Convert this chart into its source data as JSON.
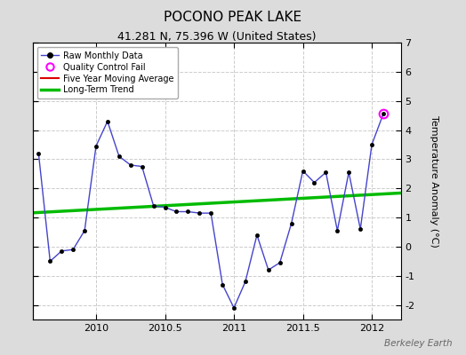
{
  "title": "POCONO PEAK LAKE",
  "subtitle": "41.281 N, 75.396 W (United States)",
  "watermark": "Berkeley Earth",
  "ylabel": "Temperature Anomaly (°C)",
  "ylim": [
    -2.5,
    7
  ],
  "yticks": [
    -2,
    -1,
    0,
    1,
    2,
    3,
    4,
    5,
    6,
    7
  ],
  "xlim": [
    2009.54,
    2012.21
  ],
  "xticks": [
    2010,
    2010.5,
    2011,
    2011.5,
    2012
  ],
  "background_color": "#dcdcdc",
  "plot_bg_color": "#ffffff",
  "raw_x": [
    2009.583,
    2009.667,
    2009.75,
    2009.833,
    2009.917,
    2010.0,
    2010.083,
    2010.167,
    2010.25,
    2010.333,
    2010.417,
    2010.5,
    2010.583,
    2010.667,
    2010.75,
    2010.833,
    2010.917,
    2011.0,
    2011.083,
    2011.167,
    2011.25,
    2011.333,
    2011.417,
    2011.5,
    2011.583,
    2011.667,
    2011.75,
    2011.833,
    2011.917,
    2012.0,
    2012.083
  ],
  "raw_y": [
    3.2,
    -0.5,
    -0.15,
    -0.1,
    0.55,
    3.45,
    4.3,
    3.1,
    2.8,
    2.75,
    1.4,
    1.35,
    1.2,
    1.2,
    1.15,
    1.15,
    -1.3,
    -2.1,
    -1.2,
    0.4,
    -0.8,
    -0.55,
    0.8,
    2.6,
    2.2,
    2.55,
    0.55,
    2.55,
    0.6,
    3.5,
    4.55
  ],
  "qc_fail_x": [
    2012.083
  ],
  "qc_fail_y": [
    4.55
  ],
  "trend_x": [
    2009.5,
    2012.25
  ],
  "trend_y": [
    1.15,
    1.85
  ],
  "raw_line_color": "#4444cc",
  "trend_color": "#00bb00",
  "ma_color": "#dd0000",
  "qc_color": "#ff00ff",
  "grid_color": "#cccccc",
  "title_fontsize": 11,
  "subtitle_fontsize": 9,
  "label_fontsize": 8,
  "tick_fontsize": 8,
  "watermark_fontsize": 7.5
}
